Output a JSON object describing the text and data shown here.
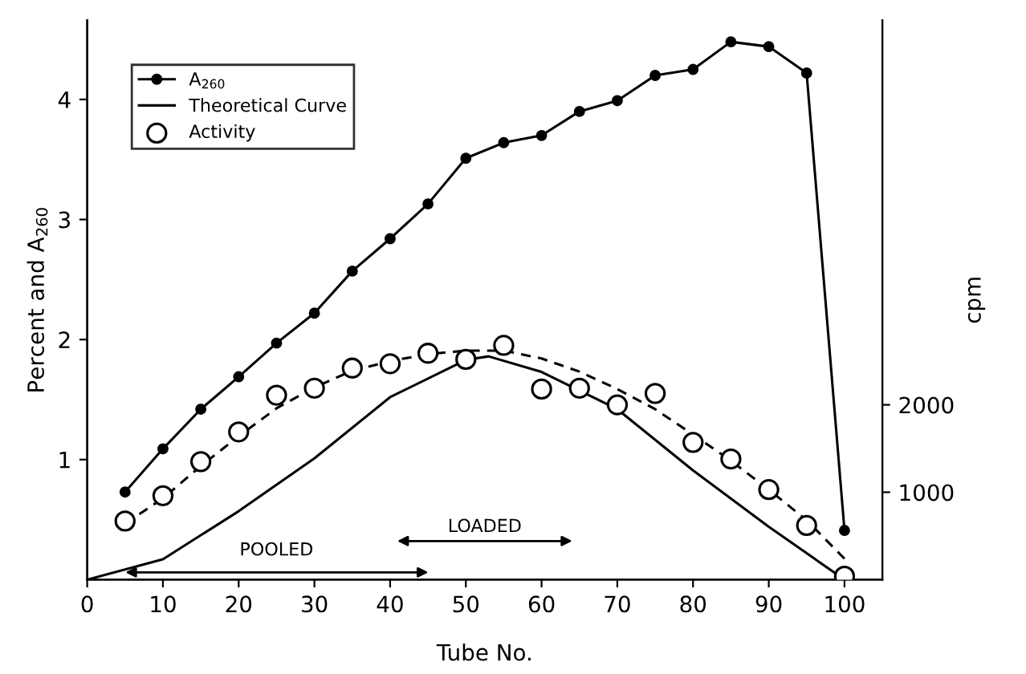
{
  "chart_data": {
    "type": "line",
    "xlabel": "Tube No.",
    "ylabel": "Percent and A$_{260}$",
    "y2label": "cpm",
    "xlim": [
      0,
      105
    ],
    "xticks": [
      0,
      10,
      20,
      30,
      40,
      50,
      60,
      70,
      80,
      90,
      100
    ],
    "ylim": [
      0,
      4.66
    ],
    "yticks": [
      1,
      2,
      3,
      4
    ],
    "y2lim": [
      0,
      6400
    ],
    "y2ticks": [
      1000,
      2000
    ],
    "grid": false,
    "legend": "top left",
    "series": [
      {
        "name": "A$_{260}$",
        "color": "#000000",
        "marker": "circle",
        "line_style": "solid",
        "x": [
          5,
          10,
          15,
          20,
          25,
          30,
          35,
          40,
          45,
          50,
          55,
          60,
          65,
          70,
          75,
          80,
          85,
          90,
          95,
          100
        ],
        "values": [
          0.73,
          1.09,
          1.42,
          1.69,
          1.97,
          2.22,
          2.57,
          2.84,
          3.13,
          3.51,
          3.64,
          3.7,
          3.9,
          3.99,
          4.2,
          4.25,
          4.48,
          4.44,
          4.22,
          0.41
        ]
      },
      {
        "name": "Theoretical Curve",
        "type": "line",
        "color": "#000000",
        "marker": "none",
        "line_style": "solid",
        "x": [
          0,
          10,
          20,
          30,
          40,
          50,
          53,
          60,
          70,
          80,
          90,
          100
        ],
        "values": [
          0,
          0.17,
          0.57,
          1.01,
          1.52,
          1.83,
          1.86,
          1.73,
          1.42,
          0.91,
          0.44,
          0
        ]
      },
      {
        "name": "Activity",
        "type": "scatter",
        "axis": "y2",
        "color": "#000000",
        "marker": "circle",
        "x": [
          5,
          10,
          15,
          20,
          25,
          30,
          35,
          40,
          45,
          50,
          55,
          60,
          65,
          70,
          75,
          80,
          85,
          90,
          95,
          100
        ],
        "values": [
          670,
          960,
          1350,
          1690,
          2110,
          2190,
          2420,
          2470,
          2590,
          2520,
          2680,
          2180,
          2190,
          2000,
          2130,
          1570,
          1380,
          1030,
          620,
          40
        ]
      },
      {
        "type": "line",
        "axis": "y2",
        "color": "#000000",
        "marker": "none",
        "line_style": "dashed",
        "x": [
          5,
          10,
          15,
          20,
          25,
          30,
          35,
          40,
          45,
          50,
          55,
          60,
          65,
          70,
          75,
          80,
          85,
          90,
          95,
          100
        ],
        "values": [
          640,
          930,
          1300,
          1640,
          1960,
          2200,
          2390,
          2500,
          2580,
          2620,
          2620,
          2530,
          2380,
          2180,
          1950,
          1660,
          1360,
          1030,
          680,
          240
        ]
      }
    ],
    "annotations": [
      "POOLED",
      "LOADED"
    ]
  }
}
